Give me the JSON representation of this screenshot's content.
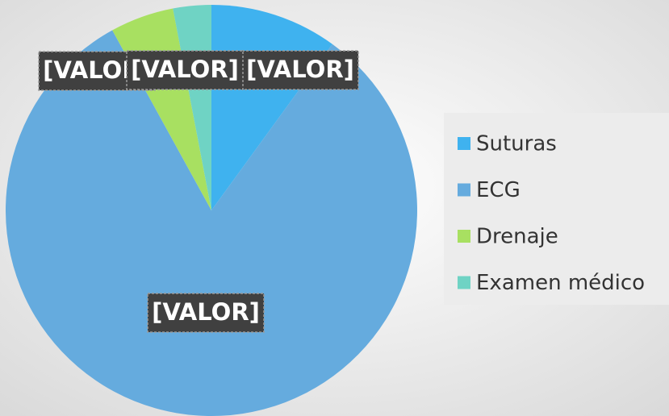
{
  "chart_data": {
    "type": "pie",
    "categories": [
      "Suturas",
      "ECG",
      "Drenaje",
      "Examen médico"
    ],
    "values": [
      10,
      82,
      5,
      3
    ],
    "value_labels": [
      "[VALOR]",
      "[VALOR]",
      "[VALOR]",
      "[VALOR]"
    ],
    "colors": [
      "#3fb2ef",
      "#65abde",
      "#a8e061",
      "#6fd3c4"
    ],
    "legend": "right"
  }
}
